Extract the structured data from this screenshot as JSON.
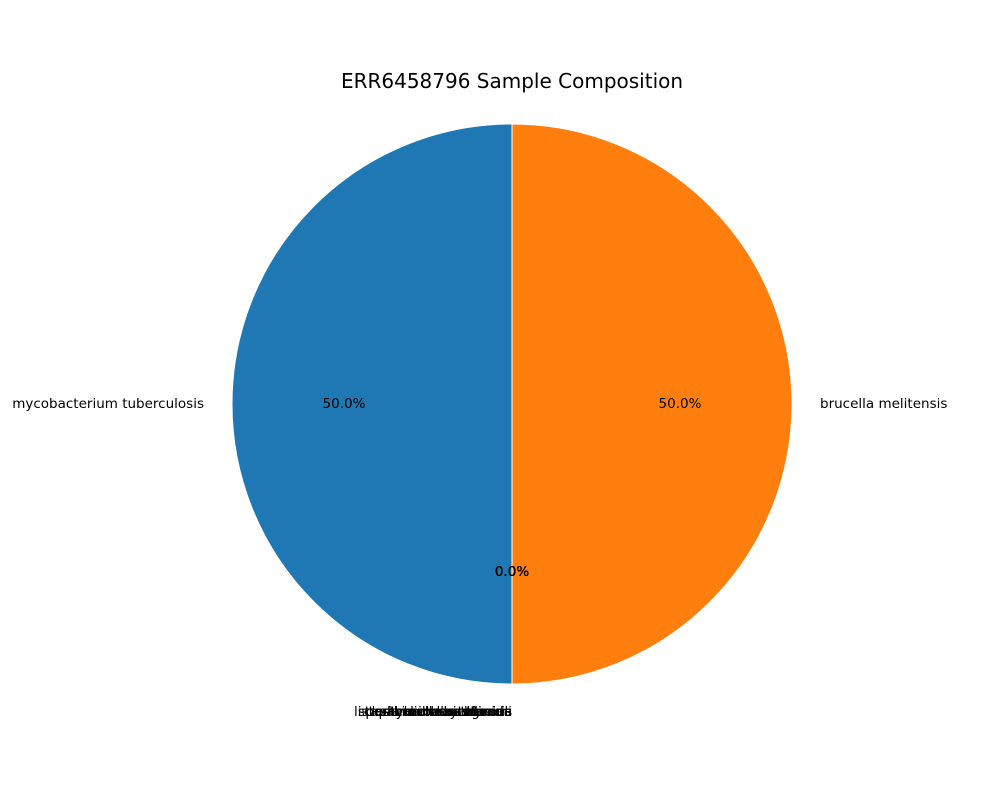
{
  "chart_data": {
    "type": "pie",
    "title": "ERR6458796 Sample Composition",
    "start_angle_deg": 90,
    "direction": "counterclockwise",
    "wedge_edge_color": "#ffffff",
    "slices": [
      {
        "label": "mycobacterium tuberculosis",
        "value": 50.0,
        "pct_label": "50.0%",
        "color": "#1f77b4"
      },
      {
        "label": "pasteurella multocida",
        "value": 0.0,
        "pct_label": "0.0%",
        "color": "#2ca02c"
      },
      {
        "label": "staphylococcus aureus",
        "value": 0.0,
        "pct_label": "0.0%",
        "color": "#d62728"
      },
      {
        "label": "listeria monocytogenes",
        "value": 0.0,
        "pct_label": "0.0%",
        "color": "#9467bd"
      },
      {
        "label": "bacillus anthracis",
        "value": 0.0,
        "pct_label": "0.0%",
        "color": "#8c564b"
      },
      {
        "label": "clostridium botulinum",
        "value": 0.0,
        "pct_label": "0.0%",
        "color": "#e377c2"
      },
      {
        "label": "salmonella enterica",
        "value": 0.0,
        "pct_label": "0.0%",
        "color": "#7f7f7f"
      },
      {
        "label": "escherichia coli",
        "value": 0.0,
        "pct_label": "0.0%",
        "color": "#bcbd22"
      },
      {
        "label": "brucella melitensis",
        "value": 50.0,
        "pct_label": "50.0%",
        "color": "#ff7f0e"
      }
    ]
  }
}
